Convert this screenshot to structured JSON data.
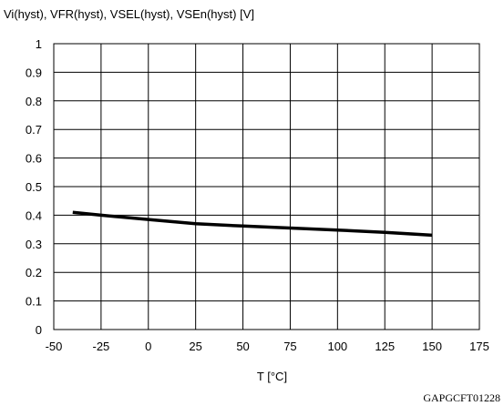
{
  "chart_data": {
    "type": "line",
    "ylabel": "Vi(hyst), VFR(hyst), VSEL(hyst), VSEn(hyst) [V]",
    "xlabel": "T [°C]",
    "xlim": [
      -50,
      175
    ],
    "ylim": [
      0,
      1
    ],
    "x_ticks": [
      -50,
      -25,
      0,
      25,
      50,
      75,
      100,
      125,
      150,
      175
    ],
    "x_tick_labels": [
      "-50",
      "-25",
      "0",
      "25",
      "50",
      "75",
      "100",
      "125",
      "150",
      "175"
    ],
    "y_ticks": [
      0,
      0.1,
      0.2,
      0.3,
      0.4,
      0.5,
      0.6,
      0.7,
      0.8,
      0.9,
      1
    ],
    "y_tick_labels": [
      "0",
      "0.1",
      "0.2",
      "0.3",
      "0.4",
      "0.5",
      "0.6",
      "0.7",
      "0.8",
      "0.9",
      "1"
    ],
    "grid": true,
    "series": [
      {
        "x": [
          -40,
          -25,
          0,
          25,
          50,
          75,
          100,
          125,
          150
        ],
        "y": [
          0.41,
          0.4,
          0.385,
          0.37,
          0.362,
          0.355,
          0.348,
          0.34,
          0.33
        ],
        "color": "#000000"
      }
    ],
    "code": "GAPGCFT01228"
  }
}
